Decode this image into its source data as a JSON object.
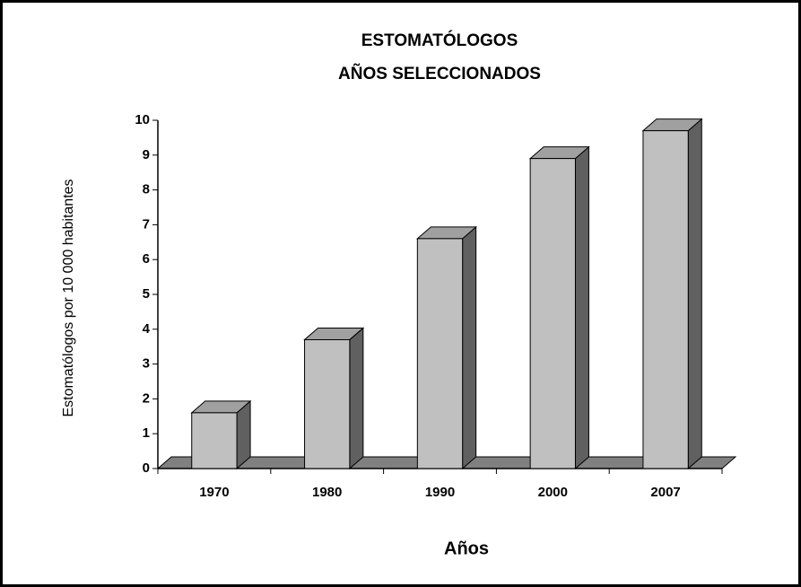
{
  "chart_data": {
    "type": "bar3d",
    "title": [
      "ESTOMATÓLOGOS",
      "AÑOS SELECCIONADOS"
    ],
    "y_label": "Estomatólogos por 10 000 habitantes",
    "x_label": "Años",
    "categories": [
      "1970",
      "1980",
      "1990",
      "2000",
      "2007"
    ],
    "values": [
      1.6,
      3.7,
      6.6,
      8.9,
      9.7
    ],
    "color": "#c0c0c0",
    "ylim": [
      0,
      10
    ],
    "yticks": [
      0,
      1,
      2,
      3,
      4,
      5,
      6,
      7,
      8,
      9,
      10
    ],
    "grid": false
  }
}
